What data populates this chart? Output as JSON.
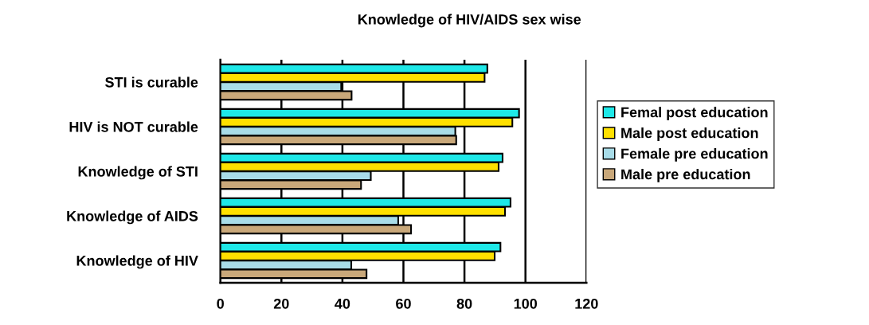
{
  "chart_data": {
    "type": "bar",
    "orientation": "horizontal",
    "title": "Knowledge of HIV/AIDS sex wise",
    "categories": [
      "STI is curable",
      "HIV is NOT curable",
      "Knowledge of STI",
      "Knowledge of AIDS",
      "Knowledge of HIV"
    ],
    "series": [
      {
        "name": "Femal post education",
        "color": "#1ee8e8",
        "values": [
          87.5,
          97.9,
          92.5,
          95.1,
          91.8
        ]
      },
      {
        "name": "Male post education",
        "color": "#ffe000",
        "values": [
          86.6,
          95.7,
          91.2,
          93.3,
          89.9
        ]
      },
      {
        "name": "Female pre education",
        "color": "#a8dce8",
        "values": [
          39.6,
          77,
          49.3,
          58.3,
          42.9
        ]
      },
      {
        "name": "Male pre education",
        "color": "#c9a87a",
        "values": [
          43,
          77.3,
          46.1,
          62.5,
          47.9
        ]
      }
    ],
    "xlim": [
      0,
      120
    ],
    "xticks": [
      0,
      20,
      40,
      60,
      80,
      100,
      120
    ],
    "grid": "x",
    "legend": "right"
  }
}
